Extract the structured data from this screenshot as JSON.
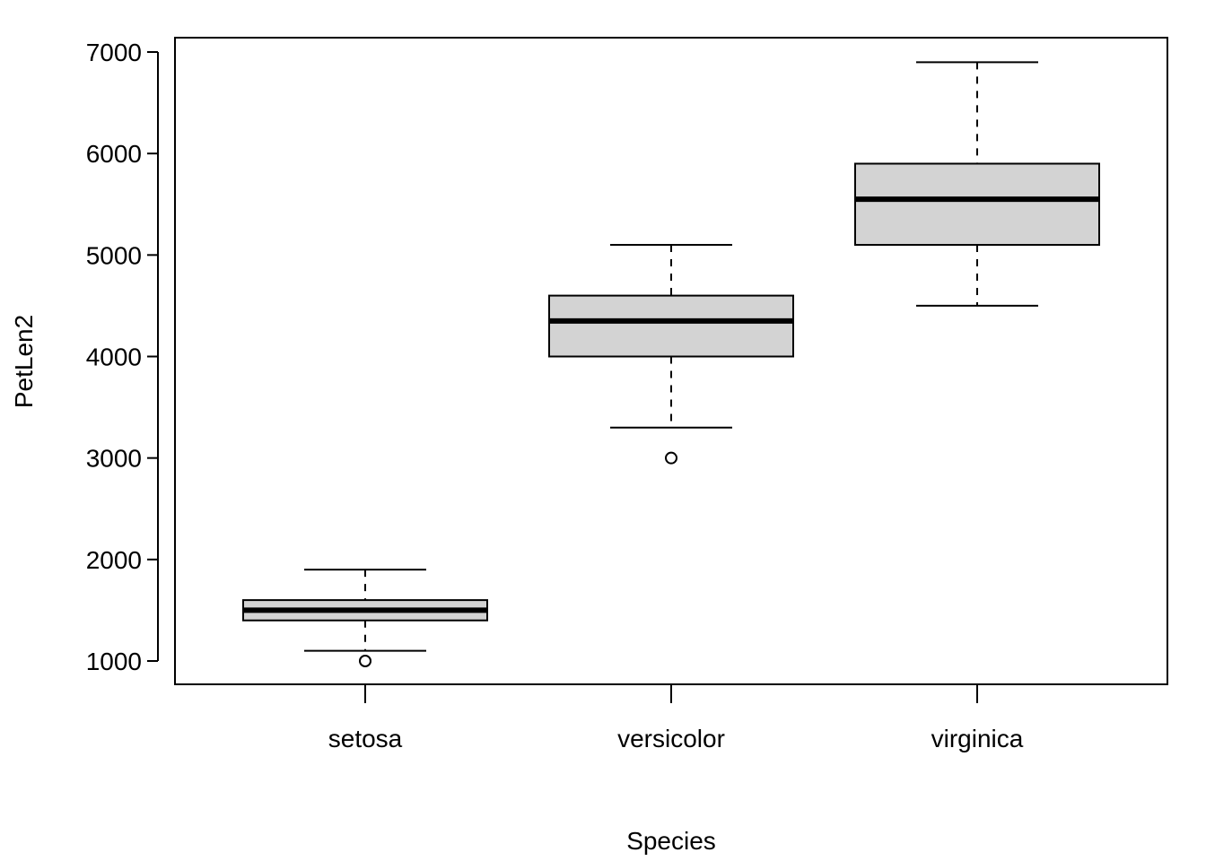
{
  "chart_data": {
    "type": "boxplot",
    "title": "",
    "xlabel": "Species",
    "ylabel": "PetLen2",
    "categories": [
      "setosa",
      "versicolor",
      "virginica"
    ],
    "ylim": [
      770,
      7150
    ],
    "yticks": [
      1000,
      2000,
      3000,
      4000,
      5000,
      6000,
      7000
    ],
    "yticklabels": [
      "1000",
      "2000",
      "3000",
      "4000",
      "5000",
      "6000",
      "7000"
    ],
    "grid": false,
    "legend": "none",
    "box_fill": "#d3d3d3",
    "boxes": [
      {
        "category": "setosa",
        "whisker_low": 1100,
        "q1": 1400,
        "median": 1500,
        "q3": 1600,
        "whisker_high": 1900,
        "outliers": [
          1000
        ]
      },
      {
        "category": "versicolor",
        "whisker_low": 3300,
        "q1": 4000,
        "median": 4350,
        "q3": 4600,
        "whisker_high": 5100,
        "outliers": [
          3000
        ]
      },
      {
        "category": "virginica",
        "whisker_low": 4500,
        "q1": 5100,
        "median": 5550,
        "q3": 5900,
        "whisker_high": 6900,
        "outliers": []
      }
    ]
  }
}
